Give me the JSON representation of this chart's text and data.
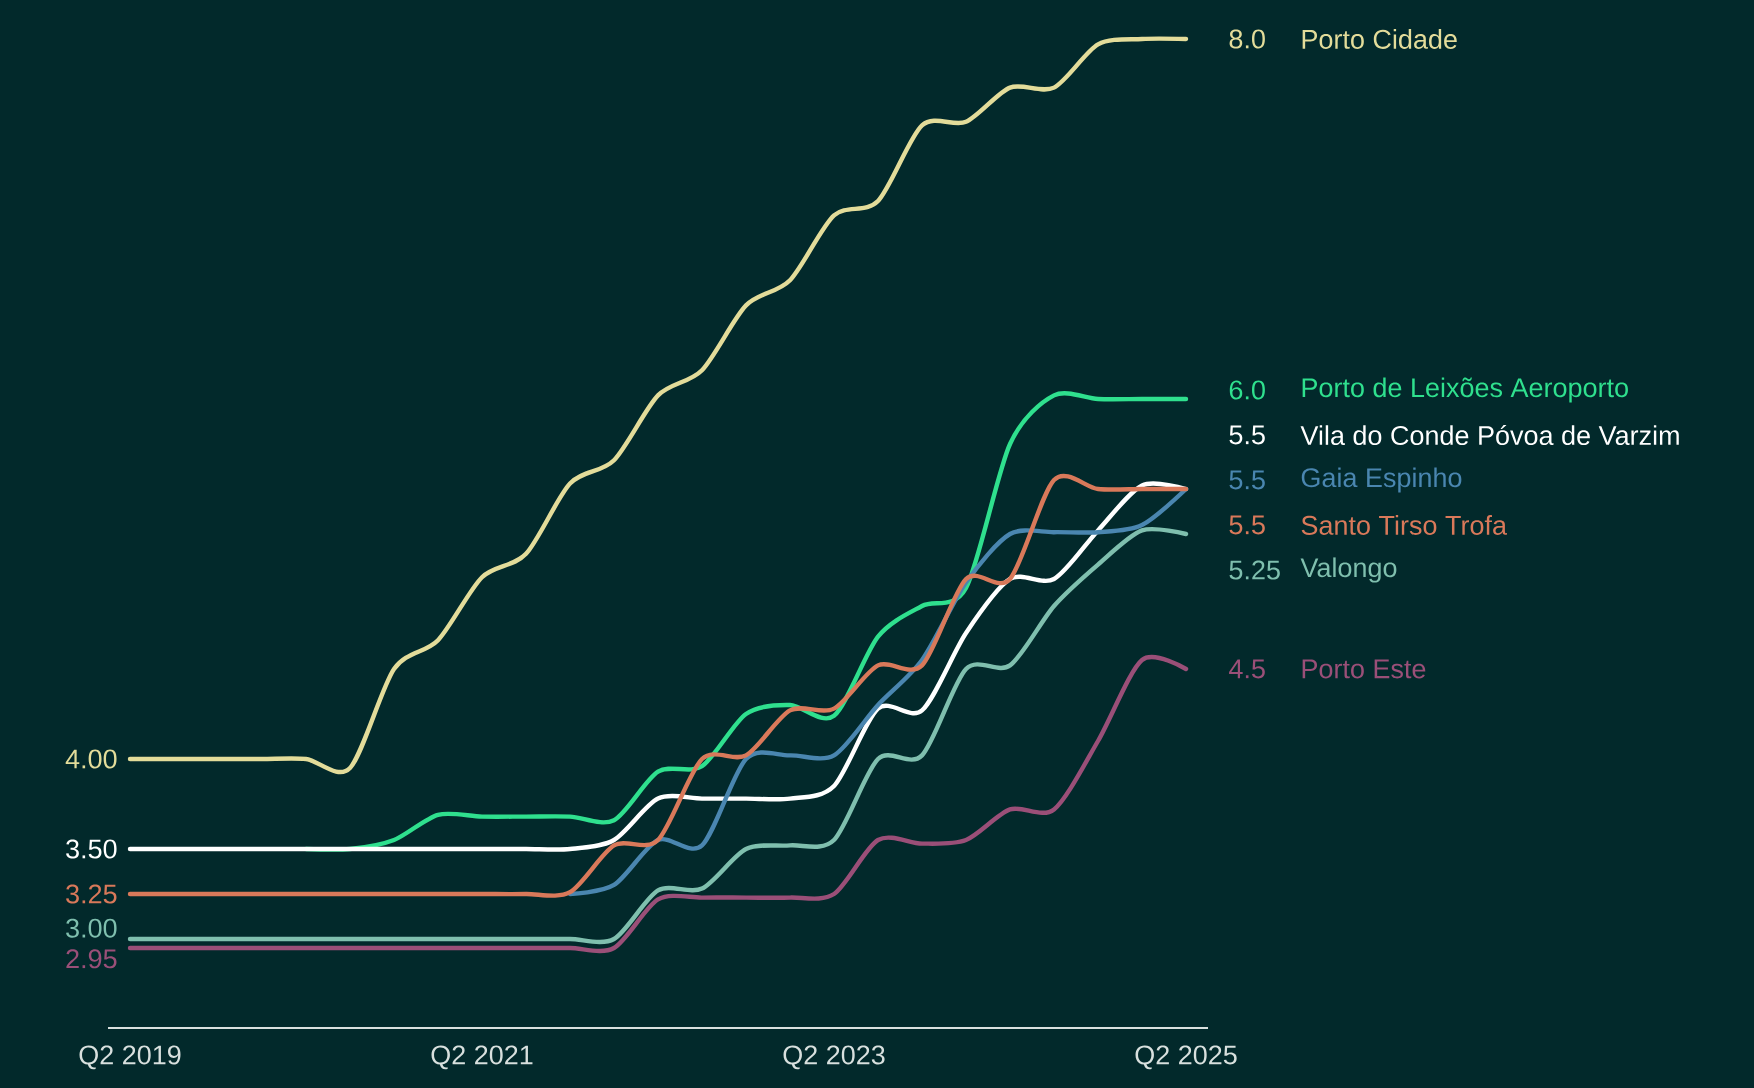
{
  "chart_data": {
    "type": "line",
    "tick_labels": "x",
    "categories": [
      "Q2 2019",
      null,
      null,
      null,
      null,
      null,
      null,
      null,
      "Q2 2021",
      null,
      null,
      null,
      null,
      null,
      null,
      null,
      "Q2 2023",
      null,
      null,
      null,
      null,
      null,
      null,
      null,
      "Q2 2025"
    ],
    "series": [
      {
        "name": "Porto Cidade",
        "color": "#e3dc9a",
        "values": [
          4.0,
          4.0,
          4.0,
          4.0,
          4.0,
          3.95,
          4.5,
          4.66,
          5.01,
          5.14,
          5.53,
          5.66,
          6.02,
          6.16,
          6.52,
          6.66,
          7.02,
          7.1,
          7.52,
          7.54,
          7.73,
          7.73,
          7.97,
          8.0,
          8.0
        ],
        "value_labels": [
          "4.00",
          null,
          null,
          null,
          null,
          null,
          null,
          null,
          null,
          null,
          null,
          null,
          null,
          null,
          null,
          null,
          null,
          null,
          null,
          null,
          null,
          null,
          null,
          null,
          "8.0"
        ]
      },
      {
        "name": "Porto de Leixões Aeroporto",
        "color": "#2fe08e",
        "values": [
          null,
          null,
          null,
          null,
          3.5,
          3.5,
          3.55,
          3.69,
          3.68,
          3.68,
          3.68,
          3.66,
          3.93,
          3.96,
          4.25,
          4.3,
          4.24,
          4.68,
          4.85,
          4.95,
          5.75,
          6.02,
          6.0,
          6.0,
          6.0
        ],
        "value_labels": [
          null,
          null,
          null,
          null,
          null,
          null,
          null,
          null,
          null,
          null,
          null,
          null,
          null,
          null,
          null,
          null,
          null,
          null,
          null,
          null,
          null,
          null,
          null,
          null,
          "6.0"
        ]
      },
      {
        "name": "Vila do Conde Póvoa de Varzim",
        "color": "#ffffff",
        "values": [
          3.5,
          3.5,
          3.5,
          3.5,
          3.5,
          3.5,
          3.5,
          3.5,
          3.5,
          3.5,
          3.5,
          3.55,
          3.78,
          3.78,
          3.78,
          3.78,
          3.85,
          4.28,
          4.27,
          4.7,
          5.0,
          5.0,
          5.27,
          5.52,
          5.5
        ],
        "value_labels": [
          "3.50",
          null,
          null,
          null,
          null,
          null,
          null,
          null,
          null,
          null,
          null,
          null,
          null,
          null,
          null,
          null,
          null,
          null,
          null,
          null,
          null,
          null,
          null,
          null,
          "5.5"
        ]
      },
      {
        "name": "Gaia Espinho",
        "color": "#4a86b0",
        "values": [
          null,
          null,
          null,
          null,
          null,
          null,
          null,
          null,
          null,
          null,
          3.25,
          3.3,
          3.55,
          3.52,
          4.0,
          4.02,
          4.02,
          4.3,
          4.55,
          4.98,
          5.25,
          5.26,
          5.26,
          5.3,
          5.5
        ],
        "value_labels": [
          null,
          null,
          null,
          null,
          null,
          null,
          null,
          null,
          null,
          null,
          null,
          null,
          null,
          null,
          null,
          null,
          null,
          null,
          null,
          null,
          null,
          null,
          null,
          null,
          "5.5"
        ]
      },
      {
        "name": "Santo Tirso Trofa",
        "color": "#d9795a",
        "values": [
          3.25,
          3.25,
          3.25,
          3.25,
          3.25,
          3.25,
          3.25,
          3.25,
          3.25,
          3.25,
          3.26,
          3.52,
          3.55,
          4.0,
          4.02,
          4.27,
          4.28,
          4.52,
          4.52,
          5.0,
          5.0,
          5.55,
          5.5,
          5.5,
          5.5
        ],
        "value_labels": [
          "3.25",
          null,
          null,
          null,
          null,
          null,
          null,
          null,
          null,
          null,
          null,
          null,
          null,
          null,
          null,
          null,
          null,
          null,
          null,
          null,
          null,
          null,
          null,
          null,
          "5.5"
        ]
      },
      {
        "name": "Valongo",
        "color": "#7fbfae",
        "values": [
          3.0,
          3.0,
          3.0,
          3.0,
          3.0,
          3.0,
          3.0,
          3.0,
          3.0,
          3.0,
          3.0,
          3.0,
          3.27,
          3.28,
          3.5,
          3.52,
          3.55,
          4.0,
          4.02,
          4.5,
          4.52,
          4.85,
          5.08,
          5.27,
          5.25
        ],
        "value_labels": [
          "3.00",
          null,
          null,
          null,
          null,
          null,
          null,
          null,
          null,
          null,
          null,
          null,
          null,
          null,
          null,
          null,
          null,
          null,
          null,
          null,
          null,
          null,
          null,
          null,
          "5.25"
        ]
      },
      {
        "name": "Porto Este",
        "color": "#9a4f78",
        "values": [
          2.95,
          2.95,
          2.95,
          2.95,
          2.95,
          2.95,
          2.95,
          2.95,
          2.95,
          2.95,
          2.95,
          2.95,
          3.22,
          3.23,
          3.23,
          3.23,
          3.25,
          3.55,
          3.53,
          3.55,
          3.72,
          3.72,
          4.1,
          4.55,
          4.5
        ],
        "value_labels": [
          "2.95",
          null,
          null,
          null,
          null,
          null,
          null,
          null,
          null,
          null,
          null,
          null,
          null,
          null,
          null,
          null,
          null,
          null,
          null,
          null,
          null,
          null,
          null,
          null,
          "4.5"
        ]
      }
    ]
  }
}
